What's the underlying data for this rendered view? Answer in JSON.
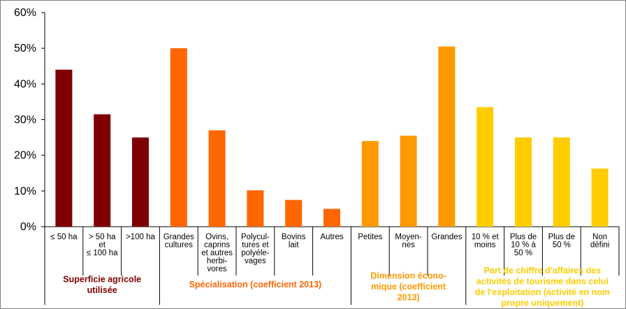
{
  "chart_data": {
    "type": "bar",
    "ylim": [
      0,
      60
    ],
    "yticks": [
      "0%",
      "10%",
      "20%",
      "30%",
      "40%",
      "50%",
      "60%"
    ],
    "grid": false,
    "categories": [
      {
        "label": [
          "≤ 50 ha"
        ],
        "value": 44,
        "color": "#7f0000"
      },
      {
        "label": [
          "> 50 ha",
          "et",
          "≤ 100 ha"
        ],
        "value": 31.5,
        "color": "#7f0000"
      },
      {
        "label": [
          ">100 ha"
        ],
        "value": 25,
        "color": "#7f0000"
      },
      {
        "label": [
          "Grandes",
          "cultures"
        ],
        "value": 50,
        "color": "#ff6600"
      },
      {
        "label": [
          "Ovins,",
          "caprins",
          "et autres",
          "herbi-",
          "vores"
        ],
        "value": 27,
        "color": "#ff6600"
      },
      {
        "label": [
          "Polycul-",
          "tures et",
          "polyéle-",
          "vages"
        ],
        "value": 10.2,
        "color": "#ff6600"
      },
      {
        "label": [
          "Bovins",
          "lait"
        ],
        "value": 7.5,
        "color": "#ff6600"
      },
      {
        "label": [
          "Autres"
        ],
        "value": 5,
        "color": "#ff6600"
      },
      {
        "label": [
          "Petites"
        ],
        "value": 24,
        "color": "#ff9900"
      },
      {
        "label": [
          "Moyen-",
          "nes"
        ],
        "value": 25.5,
        "color": "#ff9900"
      },
      {
        "label": [
          "Grandes"
        ],
        "value": 50.5,
        "color": "#ff9900"
      },
      {
        "label": [
          "10 % et",
          "moins"
        ],
        "value": 33.5,
        "color": "#ffcc00"
      },
      {
        "label": [
          "Plus de",
          "10 % à",
          "50 %"
        ],
        "value": 25,
        "color": "#ffcc00"
      },
      {
        "label": [
          "Plus de",
          "50 %"
        ],
        "value": 25,
        "color": "#ffcc00"
      },
      {
        "label": [
          "Non",
          "défini"
        ],
        "value": 16.3,
        "color": "#ffcc00"
      }
    ],
    "groups": [
      {
        "label": [
          "Superficie agricole",
          "utilisée"
        ],
        "start": 0,
        "end": 3,
        "color": "#7f0000"
      },
      {
        "label": [
          "Spécialisation (coefficient 2013)"
        ],
        "start": 3,
        "end": 8,
        "color": "#ff6600"
      },
      {
        "label": [
          "Dimension écono-",
          "mique (coefficient",
          "2013)"
        ],
        "start": 8,
        "end": 11,
        "color": "#ff9900"
      },
      {
        "label": [
          "Part de chiffre d'affaires des",
          "activités de tourisme dans celui",
          "de l'exploitation (activité en nom",
          "propre uniquement)"
        ],
        "start": 11,
        "end": 15,
        "color": "#ffcc00"
      }
    ]
  }
}
